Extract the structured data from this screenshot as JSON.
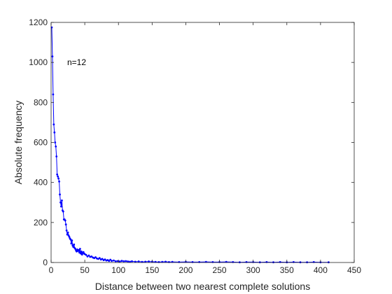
{
  "chart_data": {
    "type": "line",
    "xlabel": "Distance between two nearest complete solutions",
    "ylabel": "Absolute frequency",
    "xlim": [
      0,
      450
    ],
    "ylim": [
      0,
      1200
    ],
    "xticks": [
      0,
      50,
      100,
      150,
      200,
      250,
      300,
      350,
      400,
      450
    ],
    "yticks": [
      0,
      200,
      400,
      600,
      800,
      1000,
      1200
    ],
    "annotation": "n=12",
    "grid": false,
    "legend": "none",
    "series_color": "#0000ff",
    "series": [
      {
        "marker": "point",
        "x": [
          1,
          2,
          3,
          4,
          5,
          6,
          7,
          8,
          9,
          10,
          11,
          12,
          13,
          14,
          15,
          16,
          17,
          18,
          19,
          20,
          21,
          22,
          23,
          24,
          25,
          26,
          27,
          28,
          29,
          30,
          31,
          32,
          33,
          34,
          35,
          36,
          37,
          38,
          39,
          40,
          41,
          42,
          43,
          44,
          45,
          46,
          47,
          48,
          49,
          50,
          52,
          54,
          56,
          58,
          60,
          62,
          64,
          66,
          68,
          70,
          72,
          74,
          76,
          78,
          80,
          82,
          84,
          86,
          88,
          90,
          93,
          96,
          99,
          102,
          105,
          108,
          111,
          114,
          117,
          120,
          125,
          130,
          135,
          140,
          145,
          150,
          155,
          160,
          165,
          170,
          175,
          180,
          190,
          200,
          210,
          220,
          230,
          240,
          250,
          260,
          270,
          280,
          290,
          300,
          310,
          320,
          330,
          340,
          350,
          360,
          370,
          380,
          390,
          400,
          412
        ],
        "y": [
          1175,
          1030,
          840,
          690,
          650,
          600,
          580,
          530,
          440,
          430,
          420,
          405,
          340,
          300,
          280,
          310,
          260,
          255,
          215,
          215,
          210,
          190,
          160,
          140,
          150,
          135,
          128,
          120,
          115,
          95,
          110,
          85,
          78,
          90,
          72,
          68,
          60,
          55,
          65,
          58,
          62,
          50,
          68,
          45,
          55,
          40,
          48,
          52,
          45,
          42,
          38,
          30,
          35,
          28,
          30,
          25,
          22,
          26,
          20,
          18,
          22,
          15,
          18,
          12,
          15,
          10,
          12,
          8,
          14,
          8,
          10,
          6,
          7,
          5,
          8,
          6,
          7,
          5,
          4,
          6,
          4,
          5,
          3,
          4,
          5,
          4,
          3,
          2,
          3,
          4,
          2,
          3,
          2,
          3,
          2,
          2,
          3,
          2,
          2,
          3,
          2,
          1,
          2,
          2,
          1,
          2,
          1,
          2,
          1,
          2,
          1,
          1,
          2,
          1,
          1
        ]
      }
    ]
  }
}
